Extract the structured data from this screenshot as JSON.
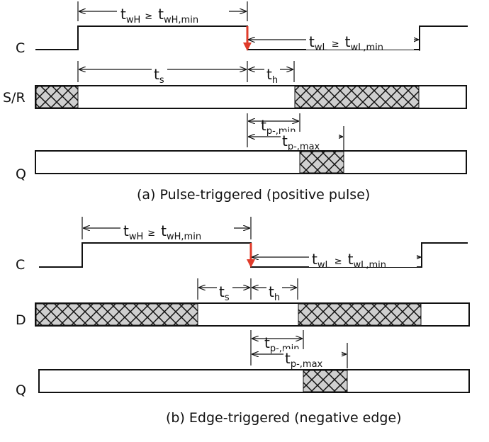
{
  "panel_a": {
    "signal_clock": "C",
    "signal_input": "S/R",
    "signal_output": "Q",
    "caption": "(a) Pulse-triggered (positive pulse)",
    "t_wH": {
      "base": "t",
      "sub": "wH"
    },
    "ge_1": "≥",
    "t_wH_min": {
      "base": "t",
      "sub": "wH,min"
    },
    "t_wL": {
      "base": "t",
      "sub": "wL"
    },
    "ge_2": "≥",
    "t_wL_min": {
      "base": "t",
      "sub": "wL,min"
    },
    "t_s": {
      "base": "t",
      "sub": "s"
    },
    "t_h": {
      "base": "t",
      "sub": "h"
    },
    "t_p_min": {
      "base": "t",
      "sub": "p-,min"
    },
    "t_p_max": {
      "base": "t",
      "sub": "p-,max"
    }
  },
  "panel_b": {
    "signal_clock": "C",
    "signal_input": "D",
    "signal_output": "Q",
    "caption": "(b) Edge-triggered (negative edge)",
    "t_wH": {
      "base": "t",
      "sub": "wH"
    },
    "ge_1": "≥",
    "t_wH_min": {
      "base": "t",
      "sub": "wH,min"
    },
    "t_wL": {
      "base": "t",
      "sub": "wL"
    },
    "ge_2": "≥",
    "t_wL_min": {
      "base": "t",
      "sub": "wL,min"
    },
    "t_s": {
      "base": "t",
      "sub": "s"
    },
    "t_h": {
      "base": "t",
      "sub": "h"
    },
    "t_p_min": {
      "base": "t",
      "sub": "p-,min"
    },
    "t_p_max": {
      "base": "t",
      "sub": "p-,max"
    }
  },
  "colors": {
    "edge_arrow": "#e03c2b",
    "line": "#111111",
    "hatch_fill": "#cfcfcf"
  }
}
